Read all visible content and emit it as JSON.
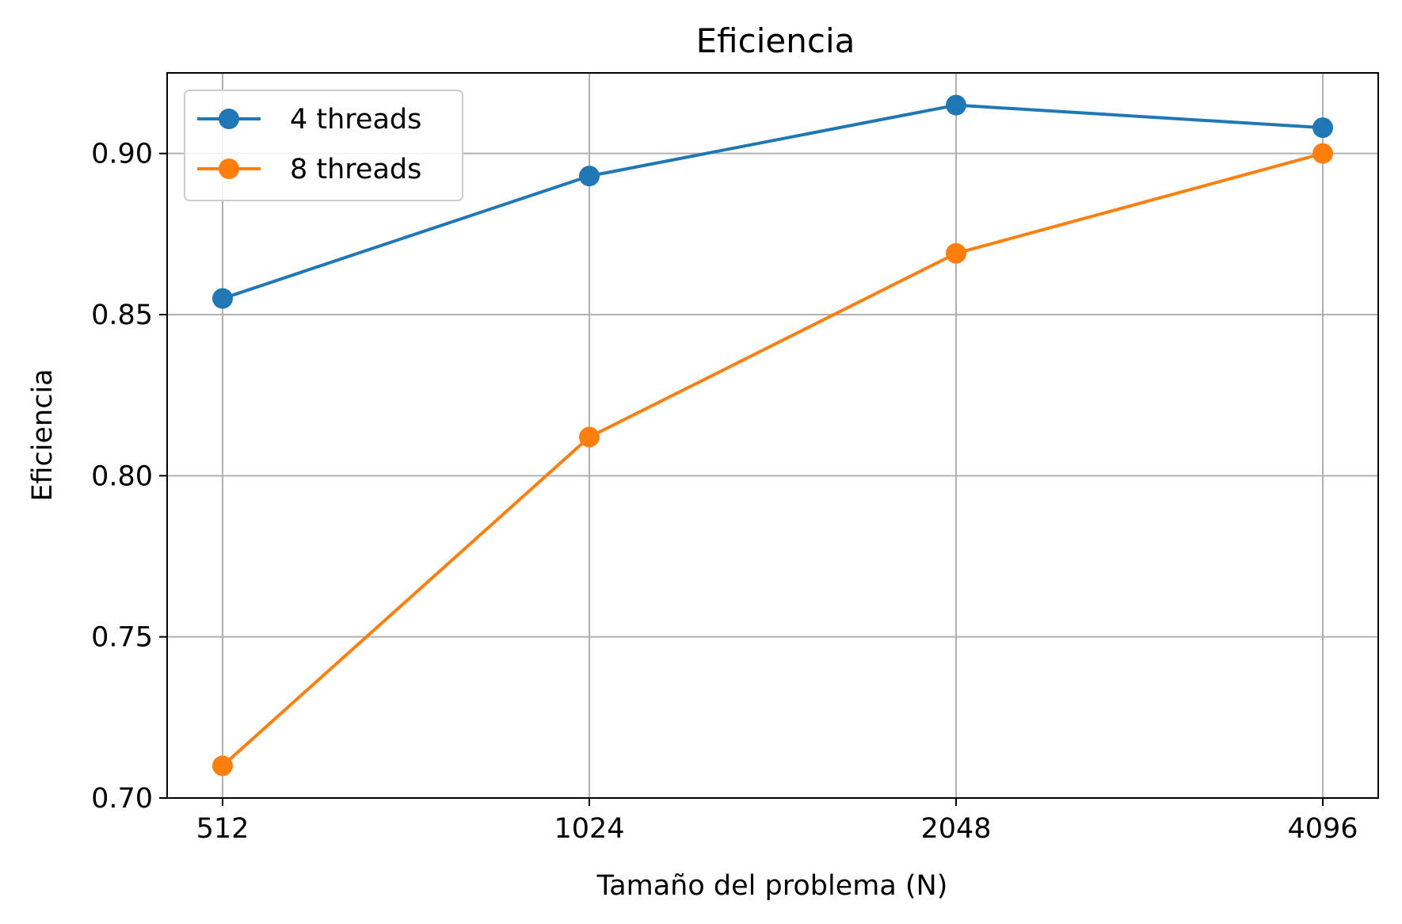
{
  "chart_data": {
    "type": "line",
    "title": "Eficiencia",
    "xlabel": "Tamaño del problema (N)",
    "ylabel": "Eficiencia",
    "categories": [
      "512",
      "1024",
      "2048",
      "4096"
    ],
    "ylim": [
      0.7,
      0.925
    ],
    "yticks": [
      "0.70",
      "0.75",
      "0.80",
      "0.85",
      "0.90"
    ],
    "grid": true,
    "legend_position": "upper-left",
    "series": [
      {
        "name": "4 threads",
        "color": "#1f77b4",
        "values": [
          0.855,
          0.893,
          0.915,
          0.908
        ]
      },
      {
        "name": "8 threads",
        "color": "#ff7f0e",
        "values": [
          0.71,
          0.812,
          0.869,
          0.9
        ]
      }
    ]
  }
}
